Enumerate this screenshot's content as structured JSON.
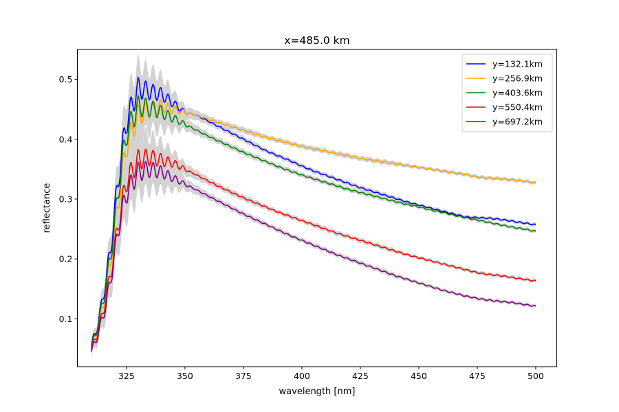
{
  "chart_data": {
    "type": "line",
    "title": "x=485.0 km",
    "xlabel": "wavelength [nm]",
    "ylabel": "reflectance",
    "xlim": [
      304,
      509
    ],
    "ylim": [
      0.02,
      0.55
    ],
    "xticks": [
      325,
      350,
      375,
      400,
      425,
      450,
      475,
      500
    ],
    "yticks": [
      0.1,
      0.2,
      0.3,
      0.4,
      0.5
    ],
    "grid": false,
    "legend_position": "top-right",
    "uncertainty_band_color": "#d3d3d3",
    "series": [
      {
        "name": "y=132.1km",
        "color": "#0000ff",
        "x": [
          310,
          312,
          314,
          316,
          318,
          320,
          322,
          325,
          330,
          335,
          340,
          345,
          350,
          355,
          360,
          365,
          370,
          375,
          380,
          385,
          390,
          395,
          400,
          405,
          410,
          415,
          420,
          425,
          430,
          435,
          440,
          445,
          450,
          455,
          460,
          465,
          470,
          475,
          480,
          485,
          490,
          495,
          500
        ],
        "y": [
          0.055,
          0.08,
          0.115,
          0.16,
          0.21,
          0.28,
          0.35,
          0.43,
          0.485,
          0.48,
          0.475,
          0.46,
          0.445,
          0.44,
          0.43,
          0.42,
          0.41,
          0.4,
          0.39,
          0.38,
          0.372,
          0.364,
          0.355,
          0.347,
          0.34,
          0.333,
          0.326,
          0.319,
          0.313,
          0.307,
          0.301,
          0.295,
          0.29,
          0.285,
          0.28,
          0.275,
          0.27,
          0.269,
          0.268,
          0.266,
          0.263,
          0.26,
          0.257
        ],
        "band": [
          0.008,
          0.01,
          0.015,
          0.02,
          0.025,
          0.03,
          0.035,
          0.04,
          0.04,
          0.035,
          0.03,
          0.02,
          0.01,
          0.008,
          0.006,
          0.005,
          0.005,
          0.005,
          0.005,
          0.004,
          0.004,
          0.004,
          0.004,
          0.004,
          0.004,
          0.004,
          0.004,
          0.004,
          0.004,
          0.004,
          0.004,
          0.003,
          0.003,
          0.003,
          0.003,
          0.003,
          0.003,
          0.003,
          0.003,
          0.003,
          0.003,
          0.003,
          0.003
        ]
      },
      {
        "name": "y=256.9km",
        "color": "#ffa500",
        "x": [
          310,
          312,
          314,
          316,
          318,
          320,
          322,
          325,
          330,
          335,
          340,
          345,
          350,
          355,
          360,
          365,
          370,
          375,
          380,
          385,
          390,
          395,
          400,
          405,
          410,
          415,
          420,
          425,
          430,
          435,
          440,
          445,
          450,
          455,
          460,
          465,
          470,
          475,
          480,
          485,
          490,
          495,
          500
        ],
        "y": [
          0.05,
          0.075,
          0.105,
          0.14,
          0.19,
          0.25,
          0.31,
          0.39,
          0.44,
          0.45,
          0.455,
          0.45,
          0.445,
          0.44,
          0.433,
          0.427,
          0.421,
          0.415,
          0.409,
          0.403,
          0.398,
          0.393,
          0.388,
          0.384,
          0.38,
          0.376,
          0.372,
          0.368,
          0.365,
          0.362,
          0.359,
          0.356,
          0.353,
          0.35,
          0.347,
          0.344,
          0.341,
          0.337,
          0.335,
          0.334,
          0.332,
          0.33,
          0.327
        ],
        "band": [
          0.008,
          0.01,
          0.015,
          0.02,
          0.025,
          0.03,
          0.035,
          0.04,
          0.04,
          0.035,
          0.03,
          0.02,
          0.01,
          0.008,
          0.006,
          0.005,
          0.005,
          0.005,
          0.005,
          0.004,
          0.004,
          0.004,
          0.004,
          0.004,
          0.004,
          0.004,
          0.004,
          0.004,
          0.004,
          0.004,
          0.004,
          0.003,
          0.003,
          0.003,
          0.003,
          0.003,
          0.003,
          0.003,
          0.003,
          0.003,
          0.003,
          0.003,
          0.003
        ]
      },
      {
        "name": "y=403.6km",
        "color": "#008000",
        "x": [
          310,
          312,
          314,
          316,
          318,
          320,
          322,
          325,
          330,
          335,
          340,
          345,
          350,
          355,
          360,
          365,
          370,
          375,
          380,
          385,
          390,
          395,
          400,
          405,
          410,
          415,
          420,
          425,
          430,
          435,
          440,
          445,
          450,
          455,
          460,
          465,
          470,
          475,
          480,
          485,
          490,
          495,
          500
        ],
        "y": [
          0.052,
          0.078,
          0.11,
          0.15,
          0.2,
          0.26,
          0.33,
          0.41,
          0.455,
          0.452,
          0.445,
          0.435,
          0.425,
          0.415,
          0.405,
          0.396,
          0.387,
          0.378,
          0.37,
          0.362,
          0.354,
          0.347,
          0.34,
          0.334,
          0.328,
          0.322,
          0.316,
          0.311,
          0.306,
          0.301,
          0.296,
          0.291,
          0.287,
          0.282,
          0.278,
          0.273,
          0.269,
          0.265,
          0.261,
          0.257,
          0.253,
          0.25,
          0.246
        ],
        "band": [
          0.008,
          0.01,
          0.015,
          0.02,
          0.025,
          0.03,
          0.035,
          0.04,
          0.04,
          0.035,
          0.03,
          0.02,
          0.01,
          0.008,
          0.006,
          0.005,
          0.005,
          0.005,
          0.005,
          0.004,
          0.004,
          0.004,
          0.004,
          0.004,
          0.004,
          0.004,
          0.004,
          0.004,
          0.004,
          0.004,
          0.004,
          0.003,
          0.003,
          0.003,
          0.003,
          0.003,
          0.003,
          0.003,
          0.003,
          0.003,
          0.003,
          0.003,
          0.003
        ]
      },
      {
        "name": "y=550.4km",
        "color": "#ff0000",
        "x": [
          310,
          312,
          314,
          316,
          318,
          320,
          322,
          325,
          330,
          335,
          340,
          345,
          350,
          355,
          360,
          365,
          370,
          375,
          380,
          385,
          390,
          395,
          400,
          405,
          410,
          415,
          420,
          425,
          430,
          435,
          440,
          445,
          450,
          455,
          460,
          465,
          470,
          475,
          480,
          485,
          490,
          495,
          500
        ],
        "y": [
          0.048,
          0.07,
          0.095,
          0.13,
          0.17,
          0.22,
          0.27,
          0.33,
          0.365,
          0.37,
          0.365,
          0.36,
          0.35,
          0.34,
          0.33,
          0.32,
          0.311,
          0.302,
          0.294,
          0.286,
          0.278,
          0.271,
          0.264,
          0.257,
          0.25,
          0.243,
          0.237,
          0.231,
          0.225,
          0.219,
          0.213,
          0.207,
          0.202,
          0.197,
          0.192,
          0.187,
          0.182,
          0.177,
          0.174,
          0.172,
          0.169,
          0.166,
          0.163
        ],
        "band": [
          0.008,
          0.01,
          0.015,
          0.02,
          0.025,
          0.03,
          0.035,
          0.04,
          0.04,
          0.035,
          0.03,
          0.02,
          0.01,
          0.008,
          0.006,
          0.005,
          0.005,
          0.005,
          0.005,
          0.004,
          0.004,
          0.004,
          0.004,
          0.004,
          0.004,
          0.004,
          0.004,
          0.004,
          0.004,
          0.004,
          0.004,
          0.003,
          0.003,
          0.003,
          0.003,
          0.003,
          0.003,
          0.003,
          0.003,
          0.003,
          0.003,
          0.003,
          0.003
        ]
      },
      {
        "name": "y=697.2km",
        "color": "#800080",
        "x": [
          310,
          312,
          314,
          316,
          318,
          320,
          322,
          325,
          330,
          335,
          340,
          345,
          350,
          355,
          360,
          365,
          370,
          375,
          380,
          385,
          390,
          395,
          400,
          405,
          410,
          415,
          420,
          425,
          430,
          435,
          440,
          445,
          450,
          455,
          460,
          465,
          470,
          475,
          480,
          485,
          490,
          495,
          500
        ],
        "y": [
          0.045,
          0.065,
          0.09,
          0.12,
          0.16,
          0.21,
          0.26,
          0.31,
          0.345,
          0.35,
          0.345,
          0.335,
          0.325,
          0.315,
          0.305,
          0.295,
          0.285,
          0.275,
          0.266,
          0.257,
          0.248,
          0.239,
          0.231,
          0.223,
          0.215,
          0.207,
          0.2,
          0.193,
          0.186,
          0.179,
          0.172,
          0.166,
          0.16,
          0.154,
          0.148,
          0.143,
          0.138,
          0.134,
          0.131,
          0.129,
          0.127,
          0.124,
          0.121
        ],
        "band": [
          0.008,
          0.01,
          0.015,
          0.02,
          0.025,
          0.03,
          0.035,
          0.04,
          0.04,
          0.035,
          0.03,
          0.02,
          0.01,
          0.008,
          0.006,
          0.005,
          0.005,
          0.005,
          0.005,
          0.004,
          0.004,
          0.004,
          0.004,
          0.004,
          0.004,
          0.004,
          0.004,
          0.004,
          0.004,
          0.004,
          0.004,
          0.003,
          0.003,
          0.003,
          0.003,
          0.003,
          0.003,
          0.003,
          0.003,
          0.003,
          0.003,
          0.003,
          0.003
        ]
      }
    ]
  }
}
